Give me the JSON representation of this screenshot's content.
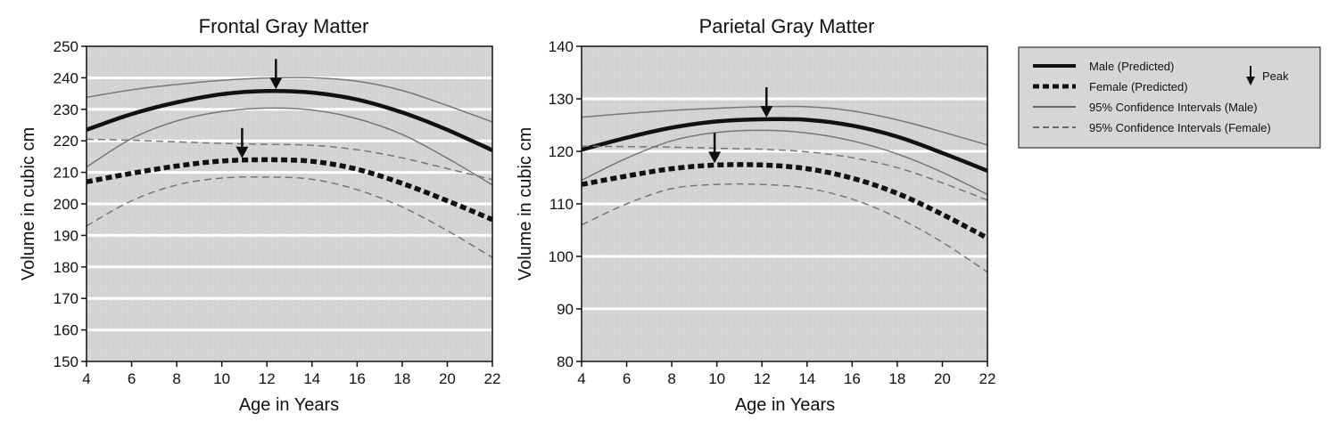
{
  "legend": {
    "items": [
      {
        "label": "Male (Predicted)",
        "style": "male-pred"
      },
      {
        "label": "Female (Predicted)",
        "style": "female-pred"
      },
      {
        "label": "95% Confidence Intervals (Male)",
        "style": "male-ci"
      },
      {
        "label": "95% Confidence Intervals (Female)",
        "style": "female-ci"
      }
    ],
    "peak_label": "Peak",
    "placement": "right"
  },
  "colors": {
    "plot_background": "#d4d4d4",
    "gridline": "#ffffff",
    "male_predicted": "#111111",
    "female_predicted": "#111111",
    "ci_line": "#777777"
  },
  "chart_data": [
    {
      "type": "line",
      "title": "Frontal Gray Matter",
      "xlabel": "Age in Years",
      "ylabel": "Volume in cubic cm",
      "xlim": [
        4,
        22
      ],
      "ylim": [
        150,
        250
      ],
      "xticks": [
        "4",
        "6",
        "8",
        "10",
        "12",
        "14",
        "16",
        "18",
        "20",
        "22"
      ],
      "yticks": [
        "150",
        "160",
        "170",
        "180",
        "190",
        "200",
        "210",
        "220",
        "230",
        "240",
        "250"
      ],
      "grid": "horizontal",
      "x": [
        4,
        6,
        8,
        10,
        12,
        14,
        16,
        18,
        20,
        22
      ],
      "series": [
        {
          "name": "Male (Predicted)",
          "values": [
            223.5,
            228.5,
            232.2,
            234.8,
            235.8,
            235.3,
            233.1,
            229.0,
            223.5,
            217.0
          ]
        },
        {
          "name": "95% Confidence Intervals (Male)",
          "values": [
            233.8,
            236.2,
            237.9,
            239.2,
            239.9,
            240.0,
            238.9,
            236.0,
            231.2,
            226.0
          ]
        },
        {
          "name": "95% Confidence Intervals (Male)",
          "values": [
            211.7,
            220.7,
            226.3,
            229.3,
            230.4,
            229.8,
            227.0,
            222.0,
            214.5,
            206.0
          ]
        },
        {
          "name": "Female (Predicted)",
          "values": [
            207.0,
            209.7,
            212.0,
            213.6,
            214.0,
            213.5,
            211.0,
            206.5,
            201.0,
            195.0
          ]
        },
        {
          "name": "95% Confidence Intervals (Female)",
          "values": [
            220.5,
            220.2,
            219.7,
            219.2,
            218.9,
            218.6,
            217.2,
            214.6,
            211.2,
            207.7
          ]
        },
        {
          "name": "95% Confidence Intervals (Female)",
          "values": [
            193.0,
            201.0,
            206.0,
            208.2,
            208.5,
            207.8,
            204.5,
            199.0,
            191.5,
            183.0
          ]
        }
      ],
      "peaks": [
        {
          "name": "Male (Predicted)",
          "x": 12.4,
          "y": 235.8
        },
        {
          "name": "Female (Predicted)",
          "x": 10.9,
          "y": 213.9
        }
      ]
    },
    {
      "type": "line",
      "title": "Parietal Gray Matter",
      "xlabel": "Age in Years",
      "ylabel": "Volume in cubic cm",
      "xlim": [
        4,
        22
      ],
      "ylim": [
        80,
        140
      ],
      "xticks": [
        "4",
        "6",
        "8",
        "10",
        "12",
        "14",
        "16",
        "18",
        "20",
        "22"
      ],
      "yticks": [
        "80",
        "90",
        "100",
        "110",
        "120",
        "130",
        "140"
      ],
      "grid": "horizontal",
      "x": [
        4,
        6,
        8,
        10,
        12,
        14,
        16,
        18,
        20,
        22
      ],
      "series": [
        {
          "name": "Male (Predicted)",
          "values": [
            120.3,
            122.6,
            124.5,
            125.7,
            126.1,
            126.0,
            124.9,
            122.8,
            119.7,
            116.3
          ]
        },
        {
          "name": "95% Confidence Intervals (Male)",
          "values": [
            126.5,
            127.2,
            127.8,
            128.2,
            128.5,
            128.5,
            127.7,
            126.0,
            123.7,
            121.2
          ]
        },
        {
          "name": "95% Confidence Intervals (Male)",
          "values": [
            114.5,
            118.7,
            122.0,
            123.6,
            124.0,
            123.5,
            122.0,
            119.5,
            116.0,
            111.8
          ]
        },
        {
          "name": "Female (Predicted)",
          "values": [
            113.7,
            115.3,
            116.7,
            117.4,
            117.4,
            116.7,
            114.9,
            112.0,
            108.0,
            103.5
          ]
        },
        {
          "name": "95% Confidence Intervals (Female)",
          "values": [
            121.0,
            120.9,
            120.8,
            120.6,
            120.4,
            119.9,
            118.8,
            116.9,
            114.0,
            110.7
          ]
        },
        {
          "name": "95% Confidence Intervals (Female)",
          "values": [
            106.0,
            110.0,
            112.9,
            113.7,
            113.7,
            113.0,
            110.9,
            107.4,
            102.7,
            97.0
          ]
        }
      ],
      "peaks": [
        {
          "name": "Male (Predicted)",
          "x": 12.2,
          "y": 126.1
        },
        {
          "name": "Female (Predicted)",
          "x": 9.9,
          "y": 117.4
        }
      ]
    }
  ]
}
